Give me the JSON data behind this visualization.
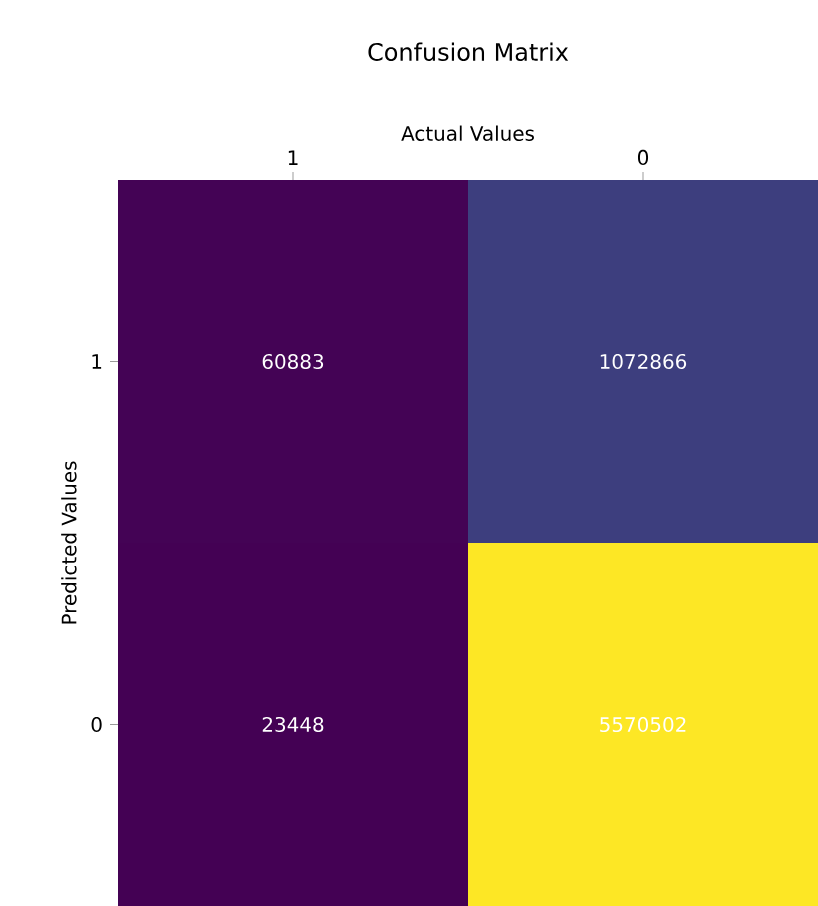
{
  "chart_data": {
    "type": "heatmap",
    "title": "Confusion Matrix",
    "xlabel": "Actual Values",
    "ylabel": "Predicted Values",
    "categories": [
      "1",
      "0"
    ],
    "y_categories": [
      "1",
      "0"
    ],
    "cells": [
      [
        60883,
        1072866
      ],
      [
        23448,
        5570502
      ]
    ],
    "data_labels": true
  }
}
